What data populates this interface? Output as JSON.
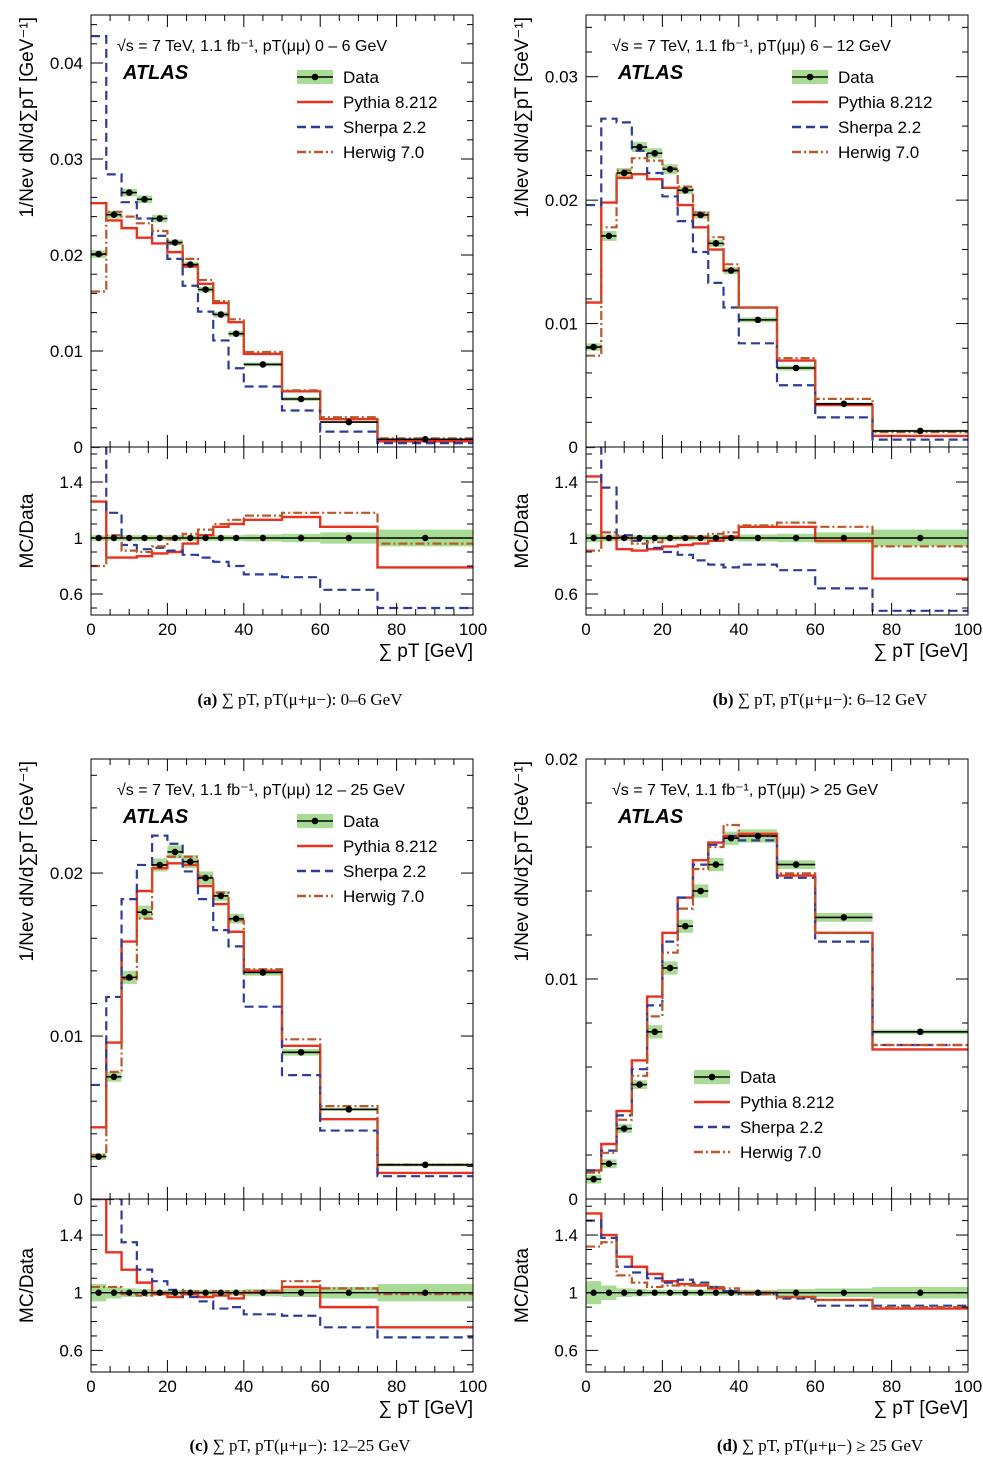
{
  "chart_data": [
    {
      "type": "line",
      "panel_id": "a",
      "caption": {
        "letter": "(a)",
        "text": "∑ pT, pT(μ+μ−): 0–6 GeV"
      },
      "info_text": "√s = 7 TeV, 1.1 fb⁻¹, pT(μμ) 0 – 6 GeV",
      "experiment": "ATLAS",
      "legend_position": "top-right",
      "ylabel": "1/Nev dN/d∑pT [GeV⁻¹]",
      "ratio_ylabel": "MC/Data",
      "xlabel": "∑ pT [GeV]",
      "xlim": [
        0,
        100
      ],
      "ylim": [
        0,
        0.045
      ],
      "ratio_ylim": [
        0.45,
        1.65
      ],
      "yticks": [
        {
          "v": 0,
          "label": "0"
        },
        {
          "v": 0.01,
          "label": "0.01"
        },
        {
          "v": 0.02,
          "label": "0.02"
        },
        {
          "v": 0.03,
          "label": "0.03"
        },
        {
          "v": 0.04,
          "label": "0.04"
        }
      ],
      "ratio_yticks": [
        {
          "v": 0.6,
          "label": "0.6"
        },
        {
          "v": 1.0,
          "label": "1"
        },
        {
          "v": 1.4,
          "label": "1.4"
        }
      ],
      "xticks": [
        {
          "v": 0,
          "label": "0"
        },
        {
          "v": 20,
          "label": "20"
        },
        {
          "v": 40,
          "label": "40"
        },
        {
          "v": 60,
          "label": "60"
        },
        {
          "v": 80,
          "label": "80"
        },
        {
          "v": 100,
          "label": "100"
        }
      ],
      "bin_edges": [
        0,
        4,
        8,
        12,
        16,
        20,
        24,
        28,
        32,
        36,
        40,
        50,
        60,
        75,
        100
      ],
      "data": {
        "name": "Data",
        "values": [
          0.0201,
          0.0242,
          0.0265,
          0.0258,
          0.0238,
          0.0213,
          0.019,
          0.0164,
          0.0138,
          0.0118,
          0.0086,
          0.005,
          0.0026,
          0.0008
        ],
        "err": [
          0.0004,
          0.0004,
          0.0004,
          0.0004,
          0.0004,
          0.0003,
          0.0003,
          0.0003,
          0.0003,
          0.0003,
          0.0002,
          0.0002,
          0.0001,
          0.0001
        ]
      },
      "series": [
        {
          "name": "Pythia 8.212",
          "color": "#e8321e",
          "dash": "",
          "values": [
            0.0254,
            0.0236,
            0.0228,
            0.0218,
            0.0212,
            0.0203,
            0.0188,
            0.017,
            0.015,
            0.013,
            0.0097,
            0.0058,
            0.0029,
            0.0006
          ]
        },
        {
          "name": "Sherpa 2.2",
          "color": "#2f3c96",
          "dash": "9,5",
          "values": [
            0.0428,
            0.0284,
            0.0255,
            0.0238,
            0.022,
            0.0196,
            0.0168,
            0.0141,
            0.0111,
            0.0082,
            0.0063,
            0.0038,
            0.0016,
            0.0004
          ]
        },
        {
          "name": "Herwig 7.0",
          "color": "#b8582b",
          "dash": "9,3,2,3",
          "values": [
            0.0162,
            0.0245,
            0.024,
            0.0233,
            0.0225,
            0.0212,
            0.0196,
            0.0174,
            0.0152,
            0.0133,
            0.0099,
            0.0059,
            0.0031,
            0.0009
          ]
        }
      ],
      "ratios": [
        {
          "name": "Pythia 8.212",
          "values": [
            1.26,
            0.86,
            0.86,
            0.87,
            0.89,
            0.9,
            0.96,
            1.02,
            1.08,
            1.1,
            1.13,
            1.15,
            1.08,
            0.79
          ]
        },
        {
          "name": "Sherpa 2.2",
          "values": [
            2.1,
            1.18,
            0.95,
            0.92,
            0.93,
            0.91,
            0.88,
            0.86,
            0.83,
            0.8,
            0.74,
            0.72,
            0.63,
            0.5
          ]
        },
        {
          "name": "Herwig 7.0",
          "values": [
            0.8,
            1.02,
            0.91,
            0.9,
            0.94,
            0.99,
            1.03,
            1.06,
            1.1,
            1.13,
            1.16,
            1.18,
            1.18,
            0.96
          ]
        }
      ],
      "band": [
        0.02,
        0.02,
        0.02,
        0.02,
        0.02,
        0.02,
        0.02,
        0.02,
        0.02,
        0.02,
        0.025,
        0.03,
        0.04,
        0.06
      ]
    },
    {
      "type": "line",
      "panel_id": "b",
      "caption": {
        "letter": "(b)",
        "text": "∑ pT, pT(μ+μ−): 6–12 GeV"
      },
      "info_text": "√s = 7 TeV, 1.1 fb⁻¹, pT(μμ) 6 – 12 GeV",
      "experiment": "ATLAS",
      "legend_position": "top-right",
      "ylabel": "1/Nev dN/d∑pT [GeV⁻¹]",
      "ratio_ylabel": "MC/Data",
      "xlabel": "∑ pT [GeV]",
      "xlim": [
        0,
        100
      ],
      "ylim": [
        0,
        0.035
      ],
      "ratio_ylim": [
        0.45,
        1.65
      ],
      "yticks": [
        {
          "v": 0,
          "label": "0"
        },
        {
          "v": 0.01,
          "label": "0.01"
        },
        {
          "v": 0.02,
          "label": "0.02"
        },
        {
          "v": 0.03,
          "label": "0.03"
        }
      ],
      "ratio_yticks": [
        {
          "v": 0.6,
          "label": "0.6"
        },
        {
          "v": 1.0,
          "label": "1"
        },
        {
          "v": 1.4,
          "label": "1.4"
        }
      ],
      "xticks": [
        {
          "v": 0,
          "label": "0"
        },
        {
          "v": 20,
          "label": "20"
        },
        {
          "v": 40,
          "label": "40"
        },
        {
          "v": 60,
          "label": "60"
        },
        {
          "v": 80,
          "label": "80"
        },
        {
          "v": 100,
          "label": "100"
        }
      ],
      "bin_edges": [
        0,
        4,
        8,
        12,
        16,
        20,
        24,
        28,
        32,
        36,
        40,
        50,
        60,
        75,
        100
      ],
      "data": {
        "name": "Data",
        "values": [
          0.0081,
          0.0171,
          0.0222,
          0.0243,
          0.0238,
          0.0225,
          0.0208,
          0.0188,
          0.0165,
          0.0143,
          0.0103,
          0.0064,
          0.0035,
          0.0013
        ],
        "err": [
          0.0003,
          0.0004,
          0.0004,
          0.0004,
          0.0004,
          0.0004,
          0.0003,
          0.0003,
          0.0003,
          0.0003,
          0.0002,
          0.0002,
          0.0001,
          0.0001
        ]
      },
      "series": [
        {
          "name": "Pythia 8.212",
          "color": "#e8321e",
          "dash": "",
          "values": [
            0.0117,
            0.0198,
            0.0218,
            0.0221,
            0.0217,
            0.021,
            0.0196,
            0.0178,
            0.016,
            0.0143,
            0.0113,
            0.007,
            0.0034,
            0.0009
          ]
        },
        {
          "name": "Sherpa 2.2",
          "color": "#2f3c96",
          "dash": "9,5",
          "values": [
            0.0196,
            0.0266,
            0.0263,
            0.024,
            0.0222,
            0.0203,
            0.0183,
            0.0158,
            0.0133,
            0.0113,
            0.0084,
            0.005,
            0.0024,
            0.0006
          ]
        },
        {
          "name": "Herwig 7.0",
          "color": "#b8582b",
          "dash": "9,3,2,3",
          "values": [
            0.0074,
            0.0178,
            0.0224,
            0.0234,
            0.0232,
            0.0226,
            0.0211,
            0.019,
            0.017,
            0.0148,
            0.0113,
            0.0072,
            0.0039,
            0.0012
          ]
        }
      ],
      "ratios": [
        {
          "name": "Pythia 8.212",
          "values": [
            1.44,
            1.0,
            0.92,
            0.91,
            0.92,
            0.94,
            0.95,
            0.96,
            0.98,
            1.01,
            1.08,
            1.08,
            0.98,
            0.71
          ]
        },
        {
          "name": "Sherpa 2.2",
          "values": [
            2.4,
            1.36,
            1.02,
            0.98,
            0.93,
            0.9,
            0.88,
            0.84,
            0.81,
            0.79,
            0.81,
            0.77,
            0.64,
            0.48
          ]
        },
        {
          "name": "Herwig 7.0",
          "values": [
            0.91,
            1.04,
            1.01,
            0.96,
            0.97,
            1.0,
            1.01,
            1.01,
            1.03,
            1.04,
            1.09,
            1.11,
            1.08,
            0.94
          ]
        }
      ],
      "band": [
        0.03,
        0.025,
        0.02,
        0.02,
        0.02,
        0.02,
        0.02,
        0.02,
        0.02,
        0.02,
        0.025,
        0.03,
        0.04,
        0.06
      ]
    },
    {
      "type": "line",
      "panel_id": "c",
      "caption": {
        "letter": "(c)",
        "text": "∑ pT, pT(μ+μ−): 12–25 GeV"
      },
      "info_text": "√s = 7 TeV, 1.1 fb⁻¹, pT(μμ) 12 – 25 GeV",
      "experiment": "ATLAS",
      "legend_position": "top-right",
      "ylabel": "1/Nev dN/d∑pT [GeV⁻¹]",
      "ratio_ylabel": "MC/Data",
      "xlabel": "∑ pT [GeV]",
      "xlim": [
        0,
        100
      ],
      "ylim": [
        0,
        0.027
      ],
      "ratio_ylim": [
        0.45,
        1.65
      ],
      "yticks": [
        {
          "v": 0,
          "label": "0"
        },
        {
          "v": 0.01,
          "label": "0.01"
        },
        {
          "v": 0.02,
          "label": "0.02"
        }
      ],
      "ratio_yticks": [
        {
          "v": 0.6,
          "label": "0.6"
        },
        {
          "v": 1.0,
          "label": "1"
        },
        {
          "v": 1.4,
          "label": "1.4"
        }
      ],
      "xticks": [
        {
          "v": 0,
          "label": "0"
        },
        {
          "v": 20,
          "label": "20"
        },
        {
          "v": 40,
          "label": "40"
        },
        {
          "v": 60,
          "label": "60"
        },
        {
          "v": 80,
          "label": "80"
        },
        {
          "v": 100,
          "label": "100"
        }
      ],
      "bin_edges": [
        0,
        4,
        8,
        12,
        16,
        20,
        24,
        28,
        32,
        36,
        40,
        50,
        60,
        75,
        100
      ],
      "data": {
        "name": "Data",
        "values": [
          0.0026,
          0.0075,
          0.0136,
          0.0176,
          0.0205,
          0.0213,
          0.0207,
          0.0197,
          0.0186,
          0.0172,
          0.0139,
          0.009,
          0.0055,
          0.0021
        ],
        "err": [
          0.0002,
          0.0003,
          0.0004,
          0.0004,
          0.0004,
          0.0004,
          0.0004,
          0.0004,
          0.0003,
          0.0003,
          0.0002,
          0.0002,
          0.0001,
          0.0001
        ]
      },
      "series": [
        {
          "name": "Pythia 8.212",
          "color": "#e8321e",
          "dash": "",
          "values": [
            0.0044,
            0.0096,
            0.0158,
            0.0189,
            0.0203,
            0.0206,
            0.0205,
            0.0192,
            0.0181,
            0.0164,
            0.014,
            0.0094,
            0.0049,
            0.0016
          ]
        },
        {
          "name": "Sherpa 2.2",
          "color": "#2f3c96",
          "dash": "9,5",
          "values": [
            0.007,
            0.0124,
            0.0184,
            0.0205,
            0.0223,
            0.0218,
            0.0201,
            0.0184,
            0.0165,
            0.0155,
            0.0118,
            0.0076,
            0.0042,
            0.0014
          ]
        },
        {
          "name": "Herwig 7.0",
          "color": "#b8582b",
          "dash": "9,3,2,3",
          "values": [
            0.0027,
            0.0078,
            0.0135,
            0.0172,
            0.0205,
            0.021,
            0.021,
            0.0198,
            0.0188,
            0.0171,
            0.0141,
            0.0098,
            0.0057,
            0.0021
          ]
        }
      ],
      "ratios": [
        {
          "name": "Pythia 8.212",
          "values": [
            1.7,
            1.28,
            1.16,
            1.07,
            0.99,
            0.97,
            0.99,
            0.97,
            0.98,
            0.96,
            1.0,
            1.04,
            0.9,
            0.76
          ]
        },
        {
          "name": "Sherpa 2.2",
          "values": [
            2.7,
            1.65,
            1.35,
            1.16,
            1.08,
            1.02,
            0.97,
            0.94,
            0.89,
            0.9,
            0.85,
            0.84,
            0.76,
            0.69
          ]
        },
        {
          "name": "Herwig 7.0",
          "values": [
            1.04,
            1.04,
            0.99,
            0.98,
            1.0,
            0.99,
            1.01,
            1.0,
            1.01,
            0.99,
            1.01,
            1.08,
            1.03,
            0.99
          ]
        }
      ],
      "band": [
        0.06,
        0.04,
        0.03,
        0.025,
        0.02,
        0.02,
        0.02,
        0.02,
        0.02,
        0.02,
        0.025,
        0.03,
        0.04,
        0.06
      ]
    },
    {
      "type": "line",
      "panel_id": "d",
      "caption": {
        "letter": "(d)",
        "text": "∑ pT, pT(μ+μ−) ≥ 25 GeV"
      },
      "info_text": "√s = 7 TeV, 1.1 fb⁻¹, pT(μμ)  > 25 GeV",
      "experiment": "ATLAS",
      "legend_position": "bottom-left",
      "ylabel": "1/Nev dN/d∑pT [GeV⁻¹]",
      "ratio_ylabel": "MC/Data",
      "xlabel": "∑ pT [GeV]",
      "xlim": [
        0,
        100
      ],
      "ylim": [
        0,
        0.02
      ],
      "ratio_ylim": [
        0.45,
        1.65
      ],
      "yticks": [
        {
          "v": 0,
          "label": "0"
        },
        {
          "v": 0.01,
          "label": "0.01"
        },
        {
          "v": 0.02,
          "label": "0.02"
        }
      ],
      "ratio_yticks": [
        {
          "v": 0.6,
          "label": "0.6"
        },
        {
          "v": 1.0,
          "label": "1"
        },
        {
          "v": 1.4,
          "label": "1.4"
        }
      ],
      "xticks": [
        {
          "v": 0,
          "label": "0"
        },
        {
          "v": 20,
          "label": "20"
        },
        {
          "v": 40,
          "label": "40"
        },
        {
          "v": 60,
          "label": "60"
        },
        {
          "v": 80,
          "label": "80"
        },
        {
          "v": 100,
          "label": "100"
        }
      ],
      "bin_edges": [
        0,
        4,
        8,
        12,
        16,
        20,
        24,
        28,
        32,
        36,
        40,
        50,
        60,
        75,
        100
      ],
      "data": {
        "name": "Data",
        "values": [
          0.0009,
          0.0016,
          0.0032,
          0.0052,
          0.0076,
          0.0105,
          0.0124,
          0.014,
          0.0152,
          0.0164,
          0.0165,
          0.0152,
          0.0128,
          0.0076
        ],
        "err": [
          0.0002,
          0.0002,
          0.0002,
          0.0002,
          0.0003,
          0.0003,
          0.0003,
          0.0003,
          0.0003,
          0.0003,
          0.0003,
          0.0002,
          0.0002,
          0.0001
        ]
      },
      "series": [
        {
          "name": "Pythia 8.212",
          "color": "#e8321e",
          "dash": "",
          "values": [
            0.0013,
            0.0025,
            0.004,
            0.0063,
            0.0092,
            0.0121,
            0.0137,
            0.0154,
            0.0162,
            0.0165,
            0.0166,
            0.0147,
            0.0121,
            0.0068
          ]
        },
        {
          "name": "Sherpa 2.2",
          "color": "#2f3c96",
          "dash": "9,5",
          "values": [
            0.0013,
            0.0022,
            0.0038,
            0.0059,
            0.0088,
            0.0117,
            0.0137,
            0.0152,
            0.0161,
            0.0165,
            0.0163,
            0.0146,
            0.0117,
            0.007
          ]
        },
        {
          "name": "Herwig 7.0",
          "color": "#b8582b",
          "dash": "9,3,2,3",
          "values": [
            0.0012,
            0.0021,
            0.0036,
            0.0056,
            0.0083,
            0.0112,
            0.0132,
            0.015,
            0.016,
            0.017,
            0.0165,
            0.0148,
            0.0121,
            0.007
          ]
        }
      ],
      "ratios": [
        {
          "name": "Pythia 8.212",
          "values": [
            1.55,
            1.4,
            1.25,
            1.18,
            1.13,
            1.08,
            1.06,
            1.05,
            1.03,
            1.01,
            1.0,
            0.97,
            0.95,
            0.89
          ]
        },
        {
          "name": "Sherpa 2.2",
          "values": [
            1.5,
            1.38,
            1.18,
            1.14,
            1.1,
            1.07,
            1.09,
            1.07,
            1.04,
            1.01,
            0.99,
            0.96,
            0.91,
            0.91
          ]
        },
        {
          "name": "Herwig 7.0",
          "values": [
            1.32,
            1.35,
            1.12,
            1.07,
            1.04,
            1.05,
            1.05,
            1.06,
            1.04,
            1.03,
            0.99,
            0.97,
            0.95,
            0.9
          ]
        }
      ],
      "band": [
        0.08,
        0.05,
        0.03,
        0.025,
        0.02,
        0.02,
        0.02,
        0.02,
        0.02,
        0.02,
        0.02,
        0.025,
        0.03,
        0.04
      ]
    }
  ]
}
